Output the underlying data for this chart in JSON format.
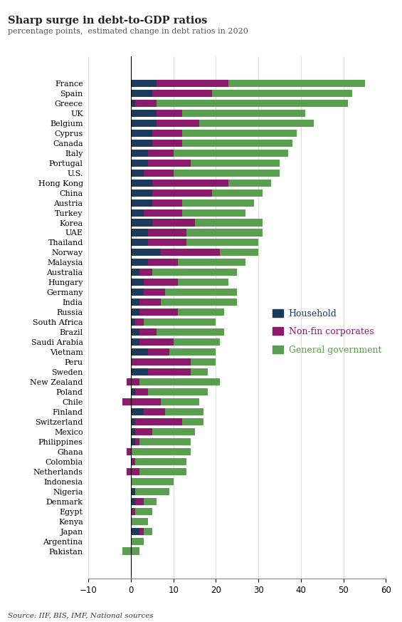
{
  "title": "Sharp surge in debt-to-GDP ratios",
  "subtitle": "percentage points,  estimated change in debt ratios in 2020",
  "source": "Source: IIF, BIS, IMF, National sources",
  "colors": {
    "household": "#1b3a5c",
    "nonfin": "#8b1a6b",
    "govgov": "#5a9e4f"
  },
  "legend": {
    "household": "Household",
    "nonfin": "Non-fin corporates",
    "govgov": "General government"
  },
  "countries": [
    "France",
    "Spain",
    "Greece",
    "UK",
    "Belgium",
    "Cyprus",
    "Canada",
    "Italy",
    "Portugal",
    "U.S.",
    "Hong Kong",
    "China",
    "Austria",
    "Turkey",
    "Korea",
    "UAE",
    "Thailand",
    "Norway",
    "Malaysia",
    "Australia",
    "Hungary",
    "Germany",
    "India",
    "Russia",
    "South Africa",
    "Brazil",
    "Saudi Arabia",
    "Vietnam",
    "Peru",
    "Sweden",
    "New Zealand",
    "Poland",
    "Chile",
    "Finland",
    "Switzerland",
    "Mexico",
    "Philippines",
    "Ghana",
    "Colombia",
    "Netherlands",
    "Indonesia",
    "Nigeria",
    "Denmark",
    "Egypt",
    "Kenya",
    "Japan",
    "Argentina",
    "Pakistan"
  ],
  "household": [
    6,
    5,
    1,
    6,
    6,
    5,
    5,
    4,
    4,
    3,
    5,
    5,
    5,
    3,
    5,
    4,
    4,
    7,
    4,
    2,
    3,
    3,
    2,
    2,
    1,
    2,
    2,
    4,
    0,
    4,
    -1,
    1,
    -2,
    3,
    1,
    1,
    1,
    -1,
    0,
    -1,
    0,
    1,
    1,
    0,
    0,
    2,
    0,
    0
  ],
  "nonfin": [
    17,
    14,
    5,
    6,
    10,
    7,
    7,
    6,
    10,
    7,
    18,
    14,
    7,
    9,
    10,
    9,
    9,
    14,
    7,
    3,
    8,
    5,
    5,
    9,
    2,
    4,
    8,
    5,
    14,
    10,
    3,
    3,
    9,
    5,
    11,
    4,
    1,
    1,
    1,
    3,
    0,
    0,
    2,
    1,
    0,
    1,
    0,
    -2
  ],
  "govgov": [
    32,
    33,
    45,
    29,
    27,
    27,
    26,
    27,
    21,
    25,
    10,
    12,
    17,
    15,
    16,
    18,
    17,
    9,
    16,
    20,
    12,
    17,
    18,
    11,
    17,
    16,
    11,
    11,
    6,
    4,
    19,
    14,
    9,
    9,
    5,
    10,
    12,
    14,
    12,
    11,
    10,
    8,
    3,
    4,
    4,
    2,
    3,
    4
  ],
  "xlim": [
    -10,
    60
  ],
  "xticks": [
    -10,
    0,
    10,
    20,
    30,
    40,
    50,
    60
  ],
  "background_color": "#ffffff"
}
